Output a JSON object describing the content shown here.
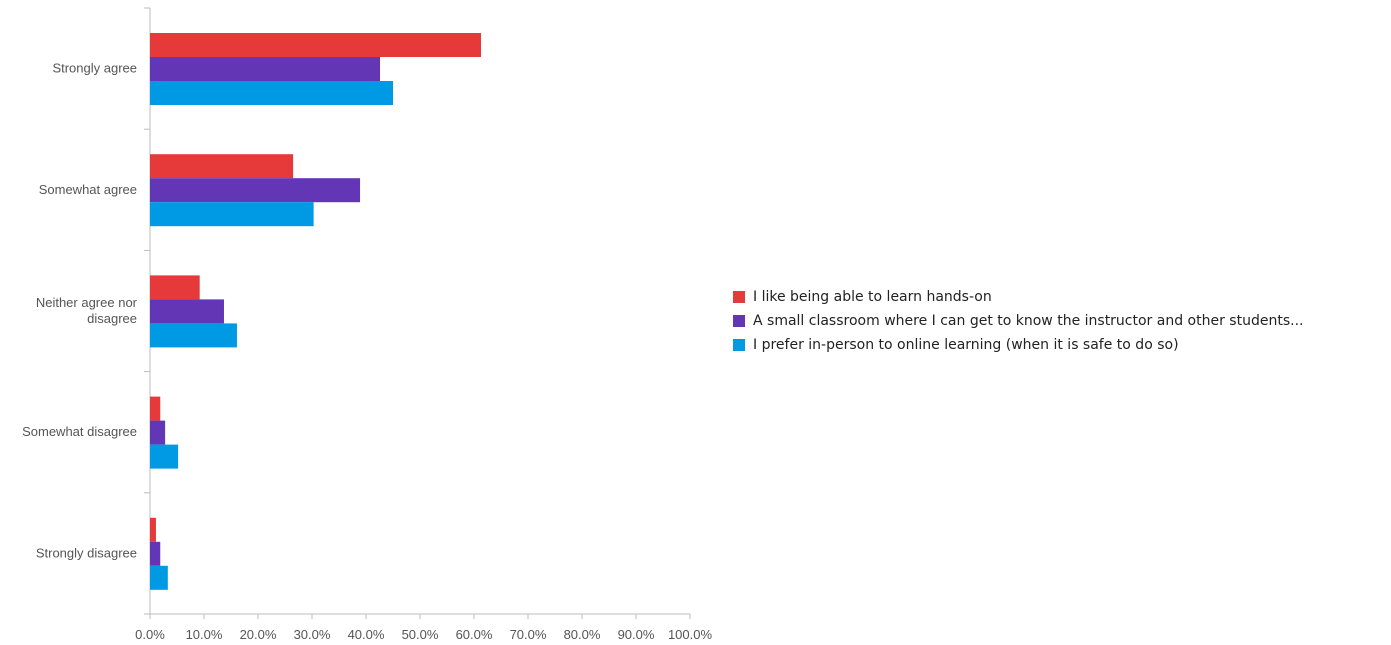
{
  "chart_data": {
    "type": "bar",
    "orientation": "horizontal",
    "categories": [
      "Strongly agree",
      "Somewhat agree",
      "Neither agree nor disagree",
      "Somewhat disagree",
      "Strongly disagree"
    ],
    "series": [
      {
        "name": "I like being able to learn hands-on",
        "color": "#e5393a",
        "values": [
          61.3,
          26.5,
          9.2,
          1.9,
          1.1
        ]
      },
      {
        "name": "A small classroom where I can get to know the instructor and other students...",
        "color": "#6236b5",
        "values": [
          42.6,
          38.9,
          13.7,
          2.8,
          1.9
        ]
      },
      {
        "name": "I prefer in-person to online learning (when it is safe to do so)",
        "color": "#0099e3",
        "values": [
          45.0,
          30.3,
          16.1,
          5.2,
          3.3
        ]
      }
    ],
    "xlim": [
      0,
      100
    ],
    "xticks": [
      "0.0%",
      "10.0%",
      "20.0%",
      "30.0%",
      "40.0%",
      "50.0%",
      "60.0%",
      "70.0%",
      "80.0%",
      "90.0%",
      "100.0%"
    ],
    "grid": false,
    "legend_position": "right"
  }
}
